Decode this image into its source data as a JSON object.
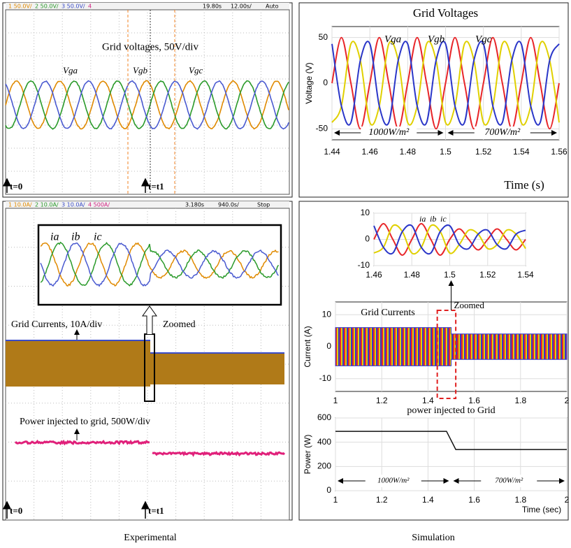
{
  "experimental": {
    "caption": "Experimental",
    "voltage_scope": {
      "header": [
        "1 50.0V/",
        "2 50.0V/",
        "3 50.0V/",
        "4"
      ],
      "time": "19.80s",
      "scale": "12.00s/",
      "mode": "Auto",
      "title": "Grid voltages, 50V/div",
      "labels": [
        "Vga",
        "Vgb",
        "Vgc"
      ],
      "markers": [
        "t=0",
        "t=t1"
      ]
    },
    "current_scope": {
      "header": [
        "1 10.0A/",
        "2 10.0A/",
        "3 10.0A/",
        "4 500A/"
      ],
      "time": "3.180s",
      "scale": "940.0s/",
      "mode": "Stop",
      "labels": [
        "ia",
        "ib",
        "ic"
      ],
      "current_title": "Grid Currents, 10A/div",
      "zoom": "Zoomed",
      "power_title": "Power injected to grid, 500W/div",
      "markers": [
        "t=0",
        "t=t1"
      ]
    }
  },
  "simulation": {
    "caption": "Simulation"
  },
  "chart_data": [
    {
      "type": "line",
      "title": "Grid Voltages",
      "xlabel": "Time (s)",
      "ylabel": "Voltage (V)",
      "x": [
        1.44,
        1.445,
        1.45,
        1.455,
        1.46,
        1.465,
        1.47,
        1.475,
        1.48,
        1.485,
        1.49,
        1.495,
        1.5,
        1.505,
        1.51,
        1.515,
        1.52,
        1.525,
        1.53,
        1.535,
        1.54,
        1.545,
        1.55,
        1.555,
        1.56
      ],
      "series": [
        {
          "name": "Vga",
          "color": "#e8262a",
          "values": [
            0,
            50,
            0,
            -50,
            0,
            50,
            0,
            -50,
            0,
            50,
            0,
            -50,
            0,
            50,
            0,
            -50,
            0,
            50,
            0,
            -50,
            0,
            50,
            0,
            -50,
            0
          ]
        },
        {
          "name": "Vgb",
          "color": "#e0d000",
          "values": [
            -43,
            -25,
            43,
            25,
            -43,
            -25,
            43,
            25,
            -43,
            -25,
            43,
            25,
            -43,
            -25,
            43,
            25,
            -43,
            -25,
            43,
            25,
            -43,
            -25,
            43,
            25,
            -43
          ]
        },
        {
          "name": "Vgc",
          "color": "#2a36c8",
          "values": [
            43,
            -25,
            -43,
            25,
            43,
            -25,
            -43,
            25,
            43,
            -25,
            -43,
            25,
            43,
            -25,
            -43,
            25,
            43,
            -25,
            -43,
            25,
            43,
            -25,
            -43,
            25,
            43
          ]
        }
      ],
      "annotations": [
        "1000W/m²",
        "700W/m²"
      ],
      "xlim": [
        1.44,
        1.56
      ],
      "xticks": [
        1.44,
        1.46,
        1.48,
        1.5,
        1.52,
        1.54,
        1.56
      ],
      "ylim": [
        -62,
        62
      ],
      "yticks": [
        -50,
        0,
        50
      ]
    },
    {
      "type": "line",
      "x": [
        1.46,
        1.465,
        1.47,
        1.475,
        1.48,
        1.485,
        1.49,
        1.495,
        1.5,
        1.505,
        1.51,
        1.515,
        1.52,
        1.525,
        1.53,
        1.535,
        1.54
      ],
      "series": [
        {
          "name": "ia",
          "color": "#e8262a",
          "values": [
            0,
            6,
            0,
            -6,
            0,
            6,
            0,
            -6,
            0,
            4,
            0,
            -4,
            0,
            4,
            0,
            -4,
            0
          ]
        },
        {
          "name": "ib",
          "color": "#e0d000",
          "values": [
            -5.2,
            -3,
            5.2,
            3,
            -5.2,
            -3,
            5.2,
            3,
            -5.2,
            -2,
            3.5,
            2,
            -3.5,
            -2,
            3.5,
            2,
            -3.5
          ]
        },
        {
          "name": "ic",
          "color": "#2a36c8",
          "values": [
            5.2,
            -3,
            -5.2,
            3,
            5.2,
            -3,
            -5.2,
            3,
            5.2,
            -2,
            -3.5,
            2,
            3.5,
            -2,
            -3.5,
            2,
            3.5
          ]
        }
      ],
      "xlim": [
        1.46,
        1.54
      ],
      "xticks": [
        1.46,
        1.48,
        1.5,
        1.52,
        1.54
      ],
      "ylim": [
        -10,
        10
      ],
      "yticks": [
        -10,
        0,
        10
      ]
    },
    {
      "type": "band",
      "title": "Grid Currents",
      "ylabel": "Current (A)",
      "annotation": "Zoomed",
      "x": [
        1,
        1.5,
        1.5,
        2
      ],
      "upper": [
        6,
        6,
        4,
        4
      ],
      "lower": [
        -6,
        -6,
        -4,
        -4
      ],
      "color": "#3438c8",
      "xlim": [
        1,
        2
      ],
      "xticks": [
        1,
        1.2,
        1.4,
        1.6,
        1.8,
        2
      ],
      "ylim": [
        -14,
        14
      ],
      "yticks": [
        -10,
        0,
        10
      ]
    },
    {
      "type": "line",
      "title": "power injected to Grid",
      "xlabel": "Time (sec)",
      "ylabel": "Power (W)",
      "x": [
        1,
        1.48,
        1.52,
        2
      ],
      "series": [
        {
          "color": "#111111",
          "values": [
            490,
            490,
            340,
            340
          ]
        }
      ],
      "annotations": [
        "1000W/m²",
        "700W/m²"
      ],
      "xlim": [
        1,
        2
      ],
      "xticks": [
        1,
        1.2,
        1.4,
        1.6,
        1.8,
        2
      ],
      "ylim": [
        0,
        600
      ],
      "yticks": [
        0,
        200,
        400,
        600
      ]
    }
  ]
}
